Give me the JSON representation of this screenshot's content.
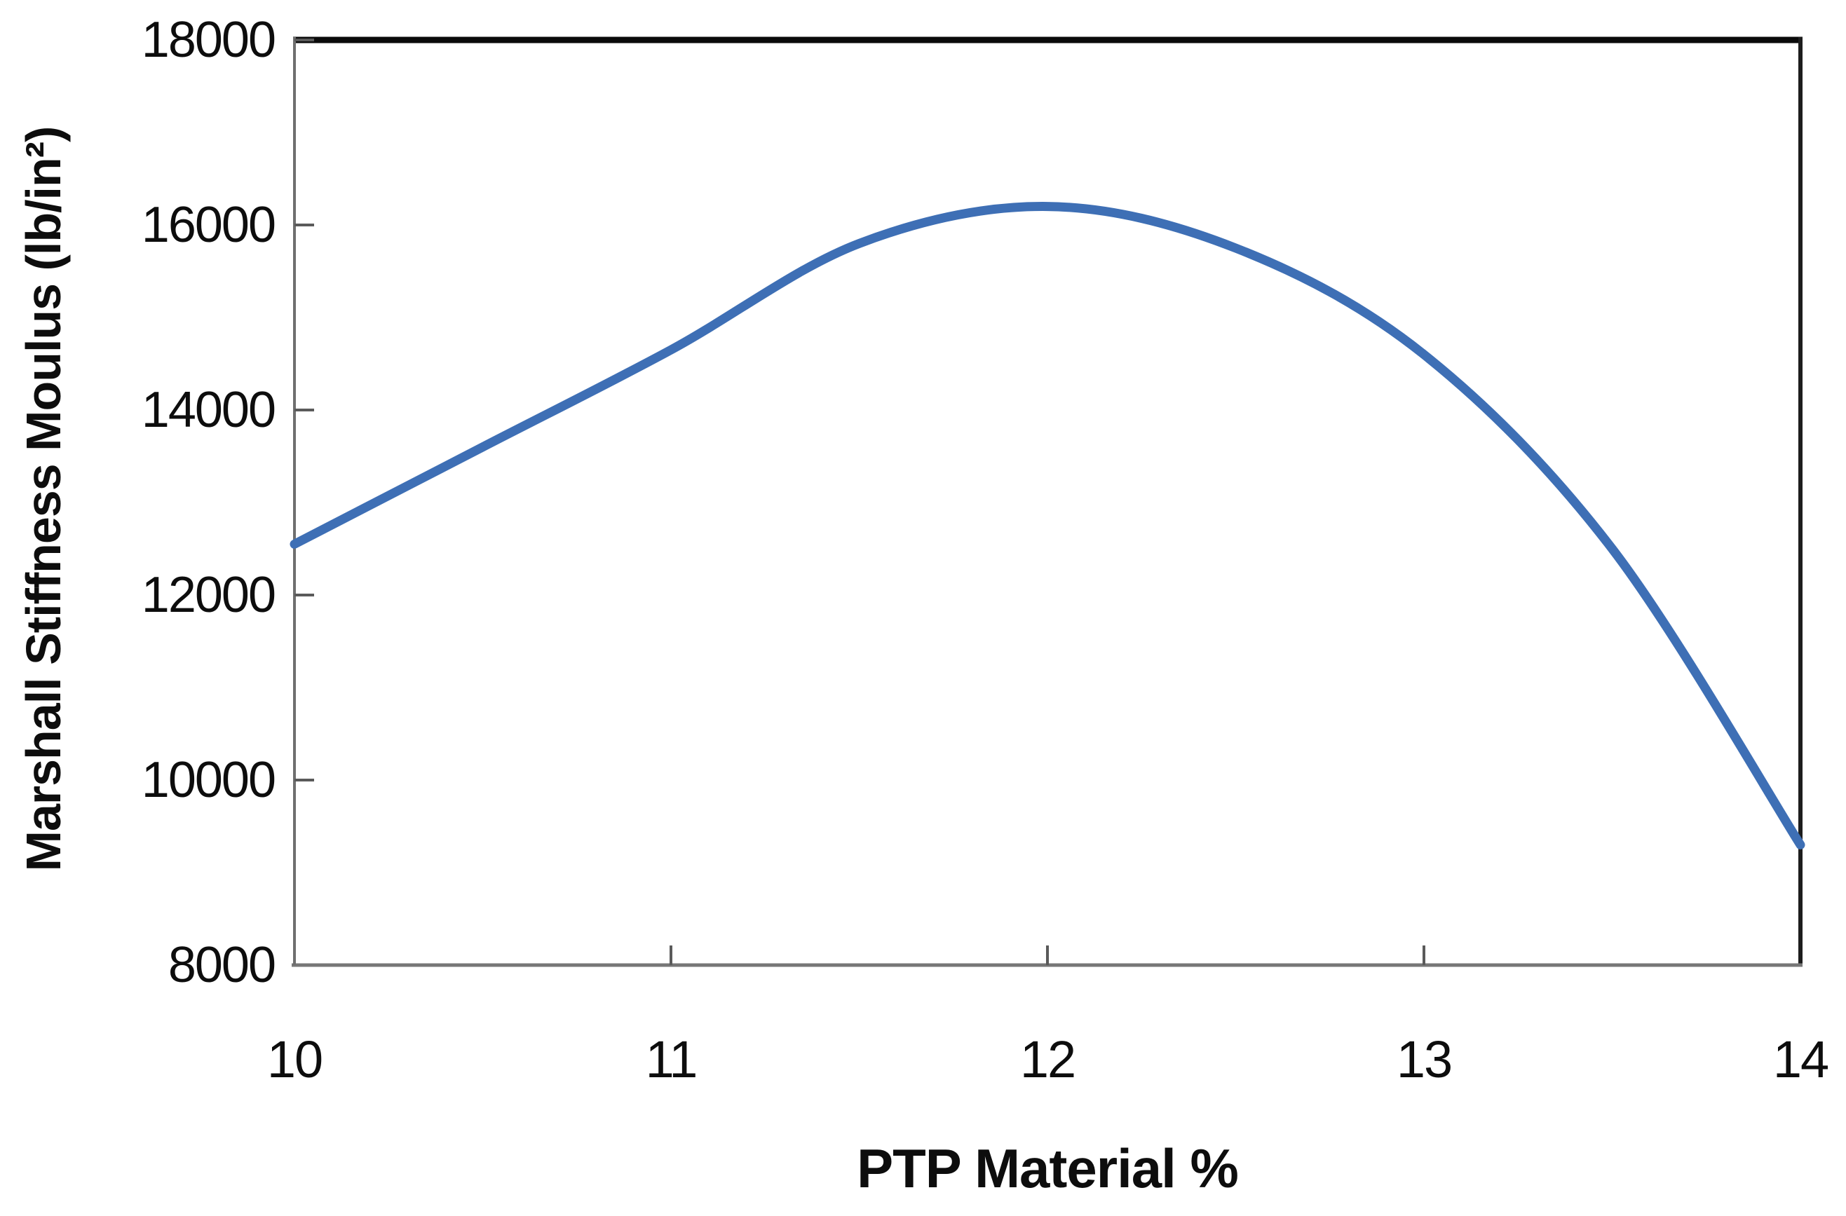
{
  "chart_data": {
    "type": "line",
    "title": "",
    "xlabel": "PTP Material %",
    "ylabel": "Marshall Stiffness Moulus (lb/in²)",
    "x": [
      10,
      10.5,
      11,
      11.5,
      12,
      12.5,
      13,
      13.5,
      14
    ],
    "y": [
      12550,
      13600,
      14650,
      15800,
      16200,
      15750,
      14600,
      12500,
      9300
    ],
    "xlim": [
      10,
      14
    ],
    "ylim": [
      8000,
      18000
    ],
    "x_ticks": [
      10,
      11,
      12,
      13,
      14
    ],
    "y_ticks": [
      8000,
      10000,
      12000,
      14000,
      16000,
      18000
    ],
    "grid": false,
    "legend": "none",
    "line_color": "#3e6fb5"
  },
  "colors": {
    "background": "#ffffff",
    "text": "#0d0d0d",
    "spine_top": "#0a0a0a",
    "spine_right": "#1d1d1d",
    "spine_bottom": "#777777",
    "spine_left": "#6f6f6f",
    "tick_mark": "#5a5a5a"
  }
}
